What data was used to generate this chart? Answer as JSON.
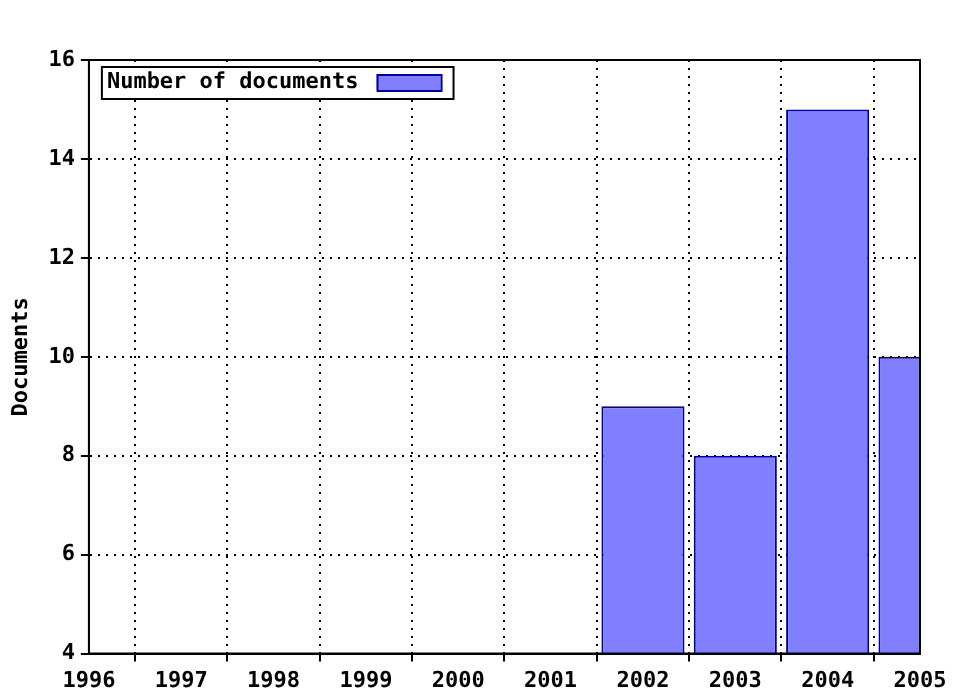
{
  "chart_data": {
    "type": "bar",
    "ylabel": "Documents",
    "x": [
      2002,
      2003,
      2004,
      2005
    ],
    "series": [
      {
        "name": "Number of documents",
        "color": "#8080ff",
        "values": [
          9,
          8,
          15,
          10
        ]
      }
    ],
    "xlim": [
      1996,
      2005
    ],
    "xticks": [
      1996,
      1997,
      1998,
      1999,
      2000,
      2001,
      2002,
      2003,
      2004,
      2005
    ],
    "ylim": [
      4,
      16
    ],
    "yticks": [
      4,
      6,
      8,
      10,
      12,
      14,
      16
    ],
    "grid": true,
    "legend": "top left"
  }
}
